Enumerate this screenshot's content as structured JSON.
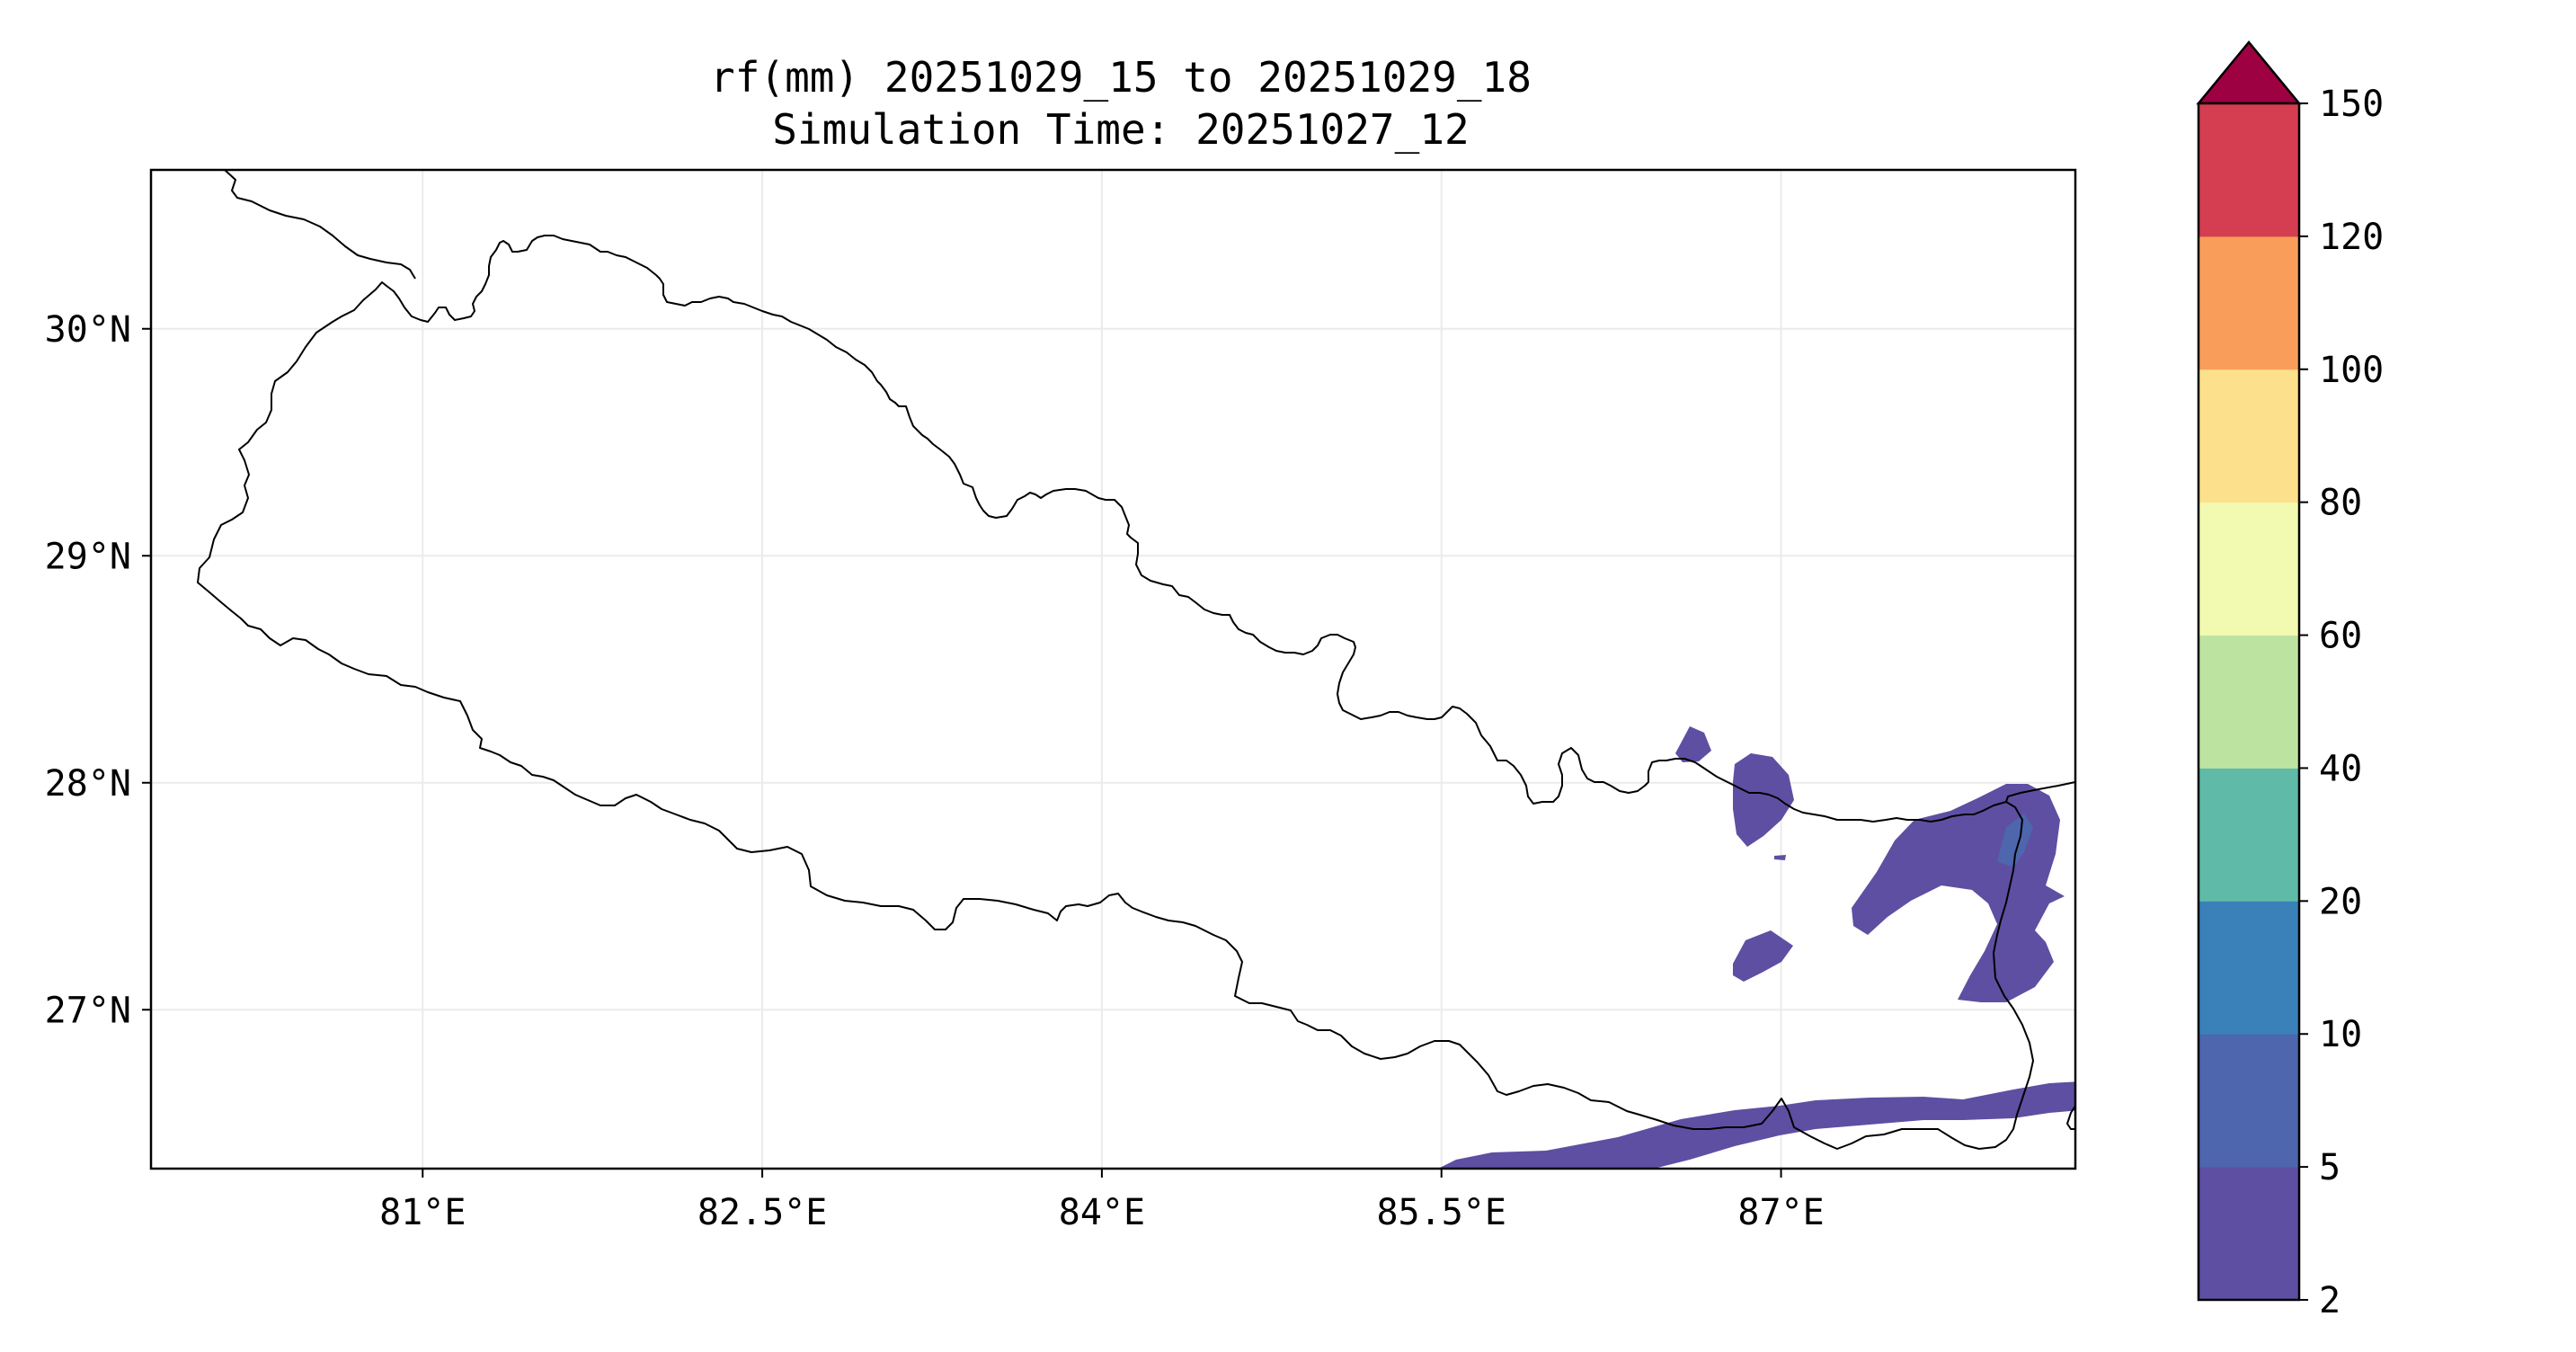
{
  "title": {
    "line1": "rf(mm) 20251029_15 to 20251029_18",
    "line2": "Simulation Time: 20251027_12"
  },
  "map": {
    "lon_range": [
      79.8,
      88.3
    ],
    "lat_range": [
      26.3,
      30.7
    ],
    "x_ticks": [
      {
        "value": 81,
        "label": "81°E"
      },
      {
        "value": 82.5,
        "label": "82.5°E"
      },
      {
        "value": 84,
        "label": "84°E"
      },
      {
        "value": 85.5,
        "label": "85.5°E"
      },
      {
        "value": 87,
        "label": "87°E"
      }
    ],
    "y_ticks": [
      {
        "value": 30,
        "label": "30°N"
      },
      {
        "value": 29,
        "label": "29°N"
      },
      {
        "value": 28,
        "label": "28°N"
      },
      {
        "value": 27,
        "label": "27°N"
      }
    ],
    "gridlines": true,
    "border_color": "#000000"
  },
  "colorbar": {
    "levels": [
      "2",
      "5",
      "10",
      "20",
      "40",
      "60",
      "80",
      "100",
      "120",
      "150"
    ],
    "colors": [
      "#5e4fa2",
      "#4d66ad",
      "#3a80b9",
      "#5fbaa8",
      "#bde3a1",
      "#f2f9b0",
      "#fde08b",
      "#f99e5a",
      "#d53e50"
    ],
    "extend_color": "#9e0142",
    "extend": "max"
  }
}
